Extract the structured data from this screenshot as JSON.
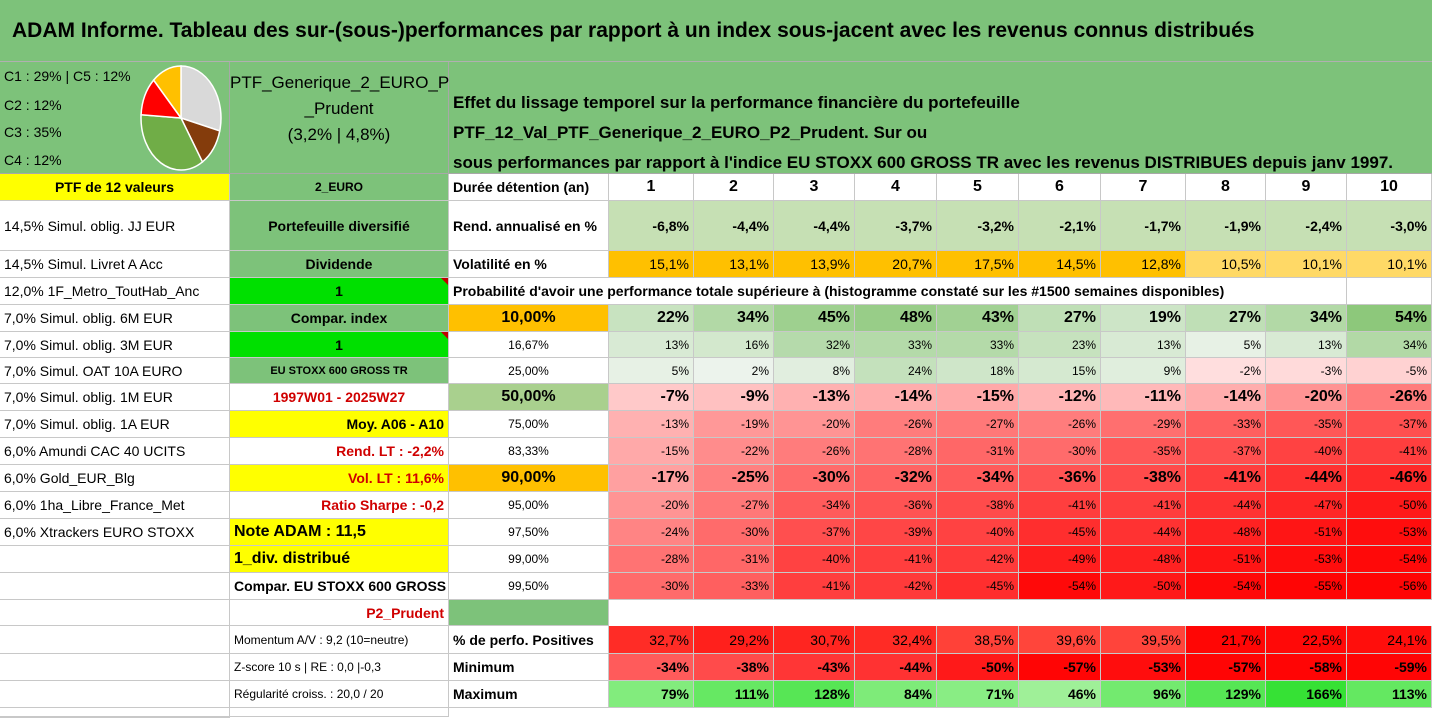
{
  "title": "ADAM Informe. Tableau des sur-(sous-)performances par rapport à un index sous-jacent avec les revenus connus distribués",
  "legend": {
    "line1": "C1 : 29% | C5 : 12%",
    "line2": "C2 : 12%",
    "line3": "C3 : 35%",
    "line4": "C4 : 12%",
    "slices": [
      {
        "name": "C1",
        "value": 29,
        "color": "#d9d9d9"
      },
      {
        "name": "C5",
        "value": 12,
        "color": "#843c0c"
      },
      {
        "name": "C3",
        "value": 35,
        "color": "#70ad47"
      },
      {
        "name": "C2",
        "value": 12,
        "color": "#ff0000"
      },
      {
        "name": "C4",
        "value": 12,
        "color": "#ffc000"
      }
    ]
  },
  "ptf_name": {
    "line1": "PTF_Generique_2_EURO_P2",
    "line2": "_Prudent",
    "line3": "(3,2% | 4,8%)"
  },
  "description": {
    "line1": "Effet du lissage temporel sur la performance financière du portefeuille PTF_12_Val_PTF_Generique_2_EURO_P2_Prudent. Sur ou",
    "line2": "sous performances par rapport à l'indice EU STOXX 600 GROSS TR avec les revenus DISTRIBUES depuis janv 1997."
  },
  "holdings_header": "PTF de 12 valeurs",
  "holdings": [
    "14,5% Simul. oblig. JJ EUR",
    "14,5% Simul. Livret A Acc",
    "12,0% 1F_Metro_ToutHab_Anc",
    "7,0% Simul. oblig. 6M EUR",
    "7,0% Simul. oblig. 3M EUR",
    "7,0% Simul. OAT 10A EURO",
    "7,0% Simul. oblig. 1M EUR",
    "7,0% Simul. oblig. 1A EUR",
    "6,0% Amundi CAC 40 UCITS",
    "6,0% Gold_EUR_Blg",
    "6,0% 1ha_Libre_France_Met",
    "6,0% Xtrackers EURO STOXX"
  ],
  "params": {
    "currency": "2_EURO",
    "type": "Portefeuille diversifié",
    "dividend_label": "Dividende",
    "dividend_value": "1",
    "compar_label": "Compar. index",
    "compar_value": "1",
    "index_name": "EU STOXX 600 GROSS TR",
    "period": "1997W01 - 2025W27",
    "moy": "Moy. A06 - A10",
    "rend_lt": "Rend. LT : -2,2%",
    "vol_lt": "Vol. LT : 11,6%",
    "sharpe": "Ratio Sharpe : -0,2",
    "note": "Note ADAM : 11,5",
    "div": "1_div. distribué",
    "compar_full": "Compar. EU STOXX 600 GROSS TR",
    "profile": "P2_Prudent",
    "momentum": "Momentum A/V : 9,2 (10=neutre)",
    "zscore": "Z-score 10 s | RE : 0,0 |-0,3",
    "regularite": "Régularité croiss. : 20,0 / 20"
  },
  "table": {
    "duration_label": "Durée détention (an)",
    "years": [
      "1",
      "2",
      "3",
      "4",
      "5",
      "6",
      "7",
      "8",
      "9",
      "10"
    ],
    "rend_label": "Rend. annualisé en %",
    "rend": [
      "-6,8%",
      "-4,4%",
      "-4,4%",
      "-3,7%",
      "-3,2%",
      "-2,1%",
      "-1,7%",
      "-1,9%",
      "-2,4%",
      "-3,0%"
    ],
    "vol_label": "Volatilité en %",
    "vol": [
      "15,1%",
      "13,1%",
      "13,9%",
      "20,7%",
      "17,5%",
      "14,5%",
      "12,8%",
      "10,5%",
      "10,1%",
      "10,1%"
    ],
    "prob_title": "Probabilité d'avoir une performance totale supérieure à (histogramme constaté sur les #1500 semaines disponibles)",
    "quantiles": [
      {
        "p": "10,00%",
        "v": [
          "22%",
          "34%",
          "45%",
          "48%",
          "43%",
          "27%",
          "19%",
          "27%",
          "34%",
          "54%"
        ]
      },
      {
        "p": "16,67%",
        "v": [
          "13%",
          "16%",
          "32%",
          "33%",
          "33%",
          "23%",
          "13%",
          "5%",
          "13%",
          "34%"
        ]
      },
      {
        "p": "25,00%",
        "v": [
          "5%",
          "2%",
          "8%",
          "24%",
          "18%",
          "15%",
          "9%",
          "-2%",
          "-3%",
          "-5%"
        ]
      },
      {
        "p": "50,00%",
        "v": [
          "-7%",
          "-9%",
          "-13%",
          "-14%",
          "-15%",
          "-12%",
          "-11%",
          "-14%",
          "-20%",
          "-26%"
        ]
      },
      {
        "p": "75,00%",
        "v": [
          "-13%",
          "-19%",
          "-20%",
          "-26%",
          "-27%",
          "-26%",
          "-29%",
          "-33%",
          "-35%",
          "-37%"
        ]
      },
      {
        "p": "83,33%",
        "v": [
          "-15%",
          "-22%",
          "-26%",
          "-28%",
          "-31%",
          "-30%",
          "-35%",
          "-37%",
          "-40%",
          "-41%"
        ]
      },
      {
        "p": "90,00%",
        "v": [
          "-17%",
          "-25%",
          "-30%",
          "-32%",
          "-34%",
          "-36%",
          "-38%",
          "-41%",
          "-44%",
          "-46%"
        ]
      },
      {
        "p": "95,00%",
        "v": [
          "-20%",
          "-27%",
          "-34%",
          "-36%",
          "-38%",
          "-41%",
          "-41%",
          "-44%",
          "-47%",
          "-50%"
        ]
      },
      {
        "p": "97,50%",
        "v": [
          "-24%",
          "-30%",
          "-37%",
          "-39%",
          "-40%",
          "-45%",
          "-44%",
          "-48%",
          "-51%",
          "-53%"
        ]
      },
      {
        "p": "99,00%",
        "v": [
          "-28%",
          "-31%",
          "-40%",
          "-41%",
          "-42%",
          "-49%",
          "-48%",
          "-51%",
          "-53%",
          "-54%"
        ]
      },
      {
        "p": "99,50%",
        "v": [
          "-30%",
          "-33%",
          "-41%",
          "-42%",
          "-45%",
          "-54%",
          "-50%",
          "-54%",
          "-55%",
          "-56%"
        ]
      }
    ],
    "pos_label": "% de perfo. Positives",
    "pos": [
      "32,7%",
      "29,2%",
      "30,7%",
      "32,4%",
      "38,5%",
      "39,6%",
      "39,5%",
      "21,7%",
      "22,5%",
      "24,1%"
    ],
    "min_label": "Minimum",
    "min": [
      "-34%",
      "-38%",
      "-43%",
      "-44%",
      "-50%",
      "-57%",
      "-53%",
      "-57%",
      "-58%",
      "-59%"
    ],
    "max_label": "Maximum",
    "max": [
      "79%",
      "111%",
      "128%",
      "84%",
      "71%",
      "46%",
      "96%",
      "129%",
      "166%",
      "113%"
    ]
  },
  "colors": {
    "header_green": "#7dc27a",
    "yellow": "#ffff00",
    "bright_green": "#00e000",
    "orange": "#ffc000",
    "red_text": "#d00000"
  }
}
